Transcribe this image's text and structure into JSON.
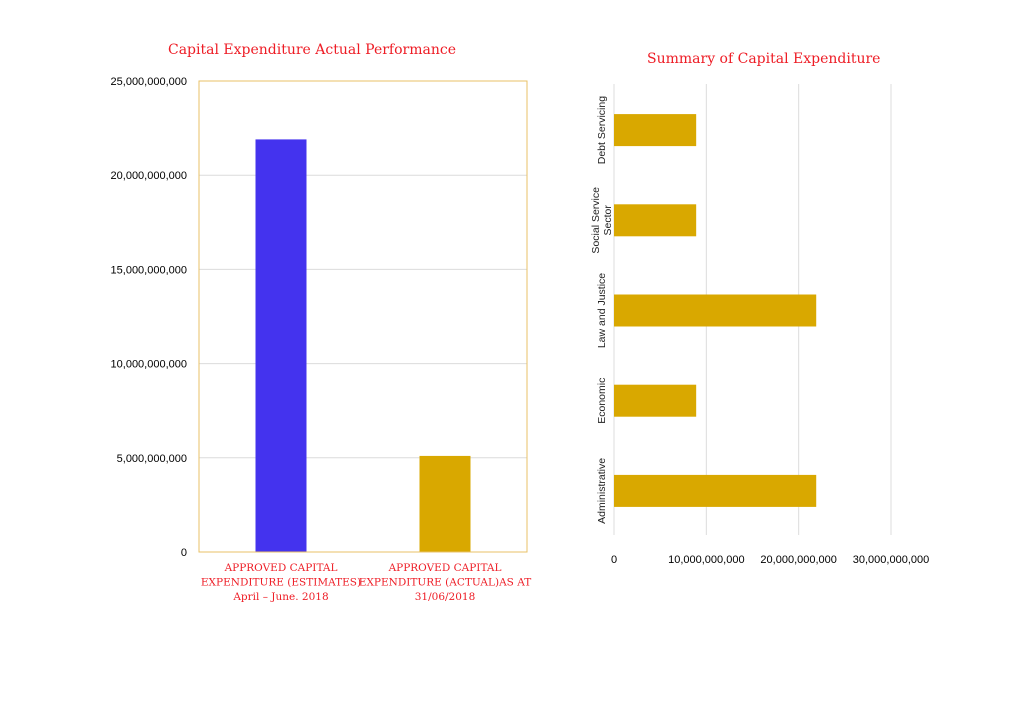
{
  "colors": {
    "blue_bar": "#4433ee",
    "gold_bar": "#d9a800",
    "title_red": "#ee1c25",
    "axis_gold": "#e8c267",
    "grid": "#dcdcdc"
  },
  "chart_data": [
    {
      "type": "bar",
      "orientation": "vertical",
      "title": "Capital Expenditure Actual Performance",
      "categories": [
        [
          "APPROVED CAPITAL",
          "EXPENDITURE (ESTIMATES)",
          "April – June. 2018"
        ],
        [
          "APPROVED CAPITAL",
          "EXPENDITURE (ACTUAL)AS AT",
          "31/06/2018"
        ]
      ],
      "values": [
        21900000000,
        5100000000
      ],
      "bar_colors": [
        "#4433ee",
        "#d9a800"
      ],
      "ylim": [
        0,
        25000000000
      ],
      "yticks": [
        0,
        5000000000,
        10000000000,
        15000000000,
        20000000000,
        25000000000
      ],
      "ytick_labels": [
        "0",
        "5,000,000,000",
        "10,000,000,000",
        "15,000,000,000",
        "20,000,000,000",
        "25,000,000,000"
      ],
      "grid": true
    },
    {
      "type": "bar",
      "orientation": "horizontal",
      "title": "Summary of Capital Expenditure",
      "categories": [
        [
          "Debt Servicing"
        ],
        [
          "Social Service",
          "Sector"
        ],
        [
          "Law and Justice"
        ],
        [
          "Economic"
        ],
        [
          "Administrative"
        ]
      ],
      "values": [
        8900000000,
        8900000000,
        21900000000,
        8900000000,
        21900000000
      ],
      "bar_color": "#d9a800",
      "xlim": [
        0,
        30000000000
      ],
      "xticks": [
        0,
        10000000000,
        20000000000,
        30000000000
      ],
      "xtick_labels": [
        "0",
        "10,000,000,000",
        "20,000,000,000",
        "30,000,000,000"
      ],
      "grid": true
    }
  ]
}
